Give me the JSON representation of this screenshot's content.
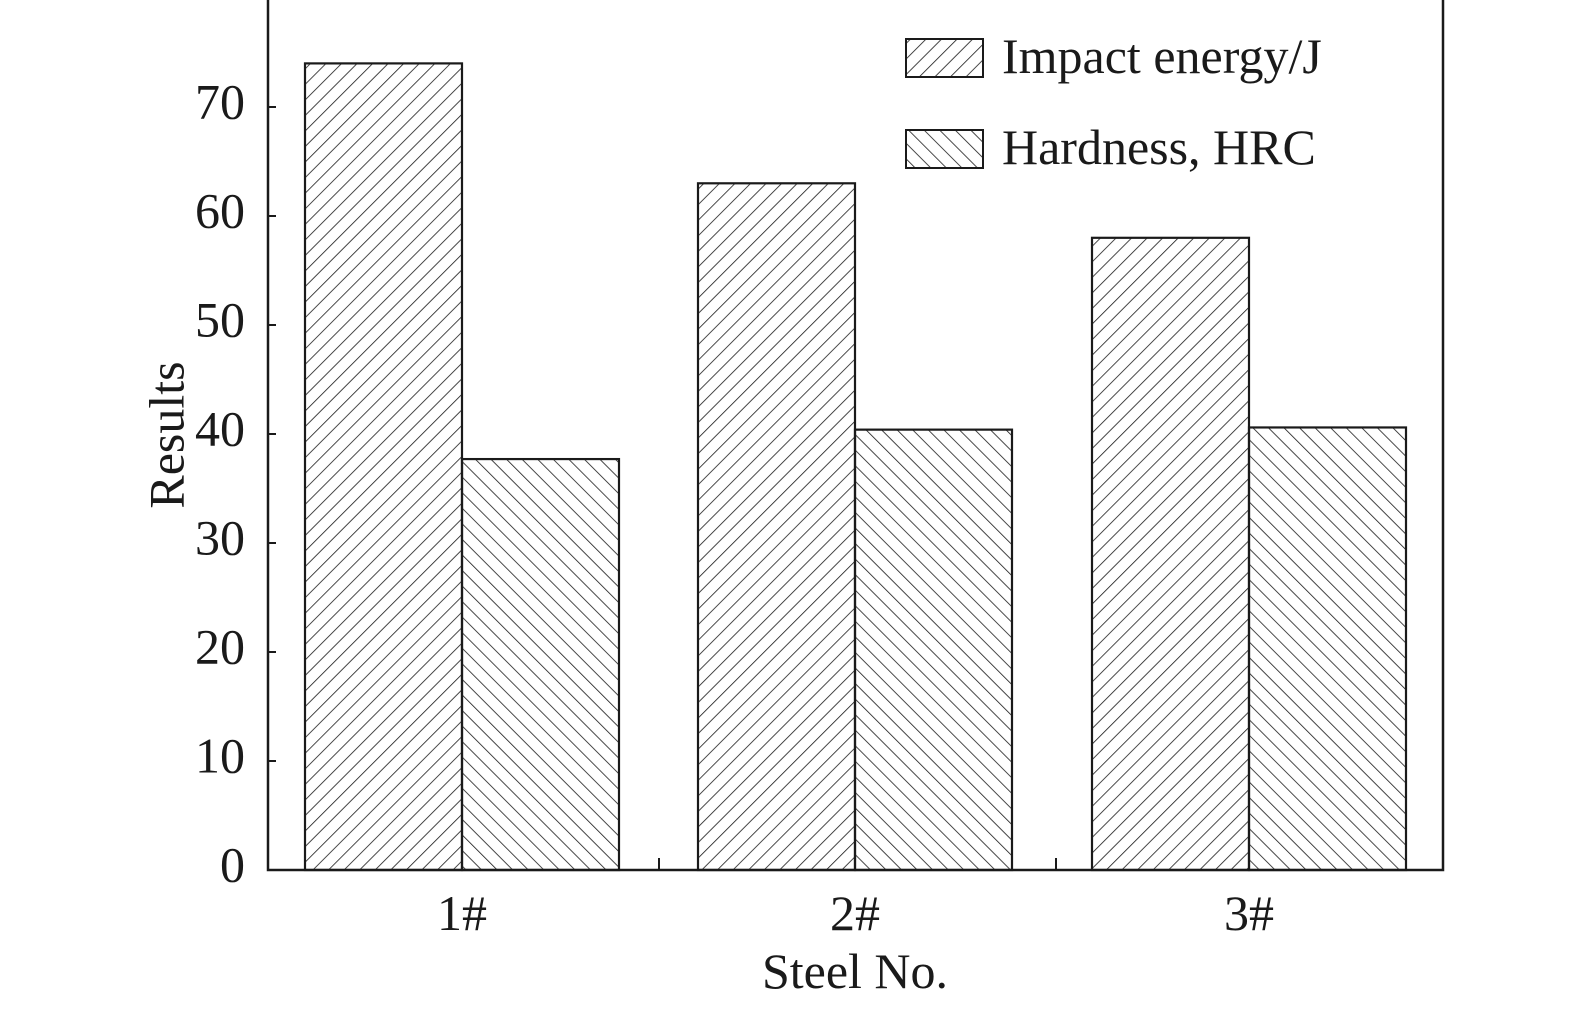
{
  "chart_data": {
    "type": "bar",
    "title": "",
    "xlabel": "Steel No.",
    "ylabel": "Results",
    "categories": [
      "1#",
      "2#",
      "3#"
    ],
    "series": [
      {
        "name": "Impact energy/J",
        "values": [
          74,
          63,
          58
        ],
        "pattern": "diagonal-up"
      },
      {
        "name": "Hardness, HRC",
        "values": [
          37.7,
          40.4,
          40.6
        ],
        "pattern": "diagonal-down"
      }
    ],
    "ylim": [
      0,
      80
    ],
    "yticks": [
      0,
      10,
      20,
      30,
      40,
      50,
      60,
      70
    ],
    "grid": false,
    "legend": "top-right",
    "colors": {
      "stroke": "#1a1a1a",
      "background": "#ffffff"
    }
  }
}
